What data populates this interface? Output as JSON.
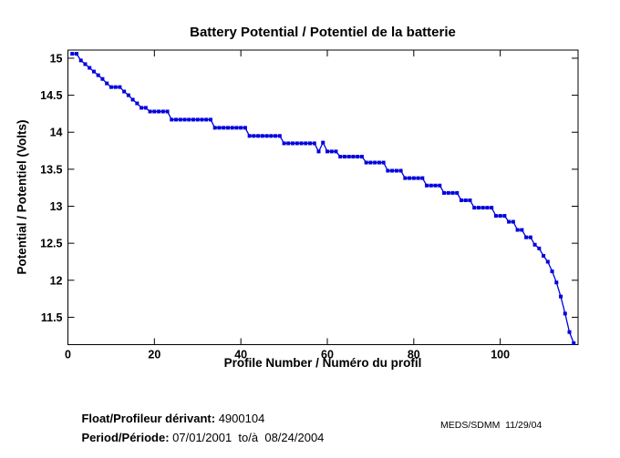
{
  "footer": {
    "float_label": "Float/Profileur dérivant:",
    "float_value": " 4900104",
    "period_label": "Period/Période:",
    "period_value": " 07/01/2001  to/à  08/24/2004",
    "credit": "MEDS/SDMM  11/29/04"
  },
  "chart_data": {
    "type": "line",
    "title": "Battery Potential / Potentiel de la batterie",
    "xlabel": "Profile Number / Numéro du profil",
    "ylabel": "Potential / Potentiel (Volts)",
    "xlim": [
      0,
      118
    ],
    "ylim": [
      11.13,
      15.11
    ],
    "xticks": [
      0,
      20,
      40,
      60,
      80,
      100
    ],
    "yticks": [
      11.5,
      12,
      12.5,
      13,
      13.5,
      14,
      14.5,
      15
    ],
    "grid": false,
    "legend": "none",
    "line_color": "#0000dd",
    "marker": "filled-square",
    "axis_color": "#000000",
    "x": [
      1,
      2,
      3,
      4,
      5,
      6,
      7,
      8,
      9,
      10,
      11,
      12,
      13,
      14,
      15,
      16,
      17,
      18,
      19,
      20,
      21,
      22,
      23,
      24,
      25,
      26,
      27,
      28,
      29,
      30,
      31,
      32,
      33,
      34,
      35,
      36,
      37,
      38,
      39,
      40,
      41,
      42,
      43,
      44,
      45,
      46,
      47,
      48,
      49,
      50,
      51,
      52,
      53,
      54,
      55,
      56,
      57,
      58,
      59,
      60,
      61,
      62,
      63,
      64,
      65,
      66,
      67,
      68,
      69,
      70,
      71,
      72,
      73,
      74,
      75,
      76,
      77,
      78,
      79,
      80,
      81,
      82,
      83,
      84,
      85,
      86,
      87,
      88,
      89,
      90,
      91,
      92,
      93,
      94,
      95,
      96,
      97,
      98,
      99,
      100,
      101,
      102,
      103,
      104,
      105,
      106,
      107,
      108,
      109,
      110,
      111,
      112,
      113,
      114,
      115,
      116,
      117
    ],
    "y": [
      15.06,
      15.06,
      14.97,
      14.92,
      14.87,
      14.82,
      14.77,
      14.72,
      14.66,
      14.61,
      14.61,
      14.61,
      14.55,
      14.5,
      14.44,
      14.39,
      14.33,
      14.33,
      14.28,
      14.28,
      14.28,
      14.28,
      14.28,
      14.17,
      14.17,
      14.17,
      14.17,
      14.17,
      14.17,
      14.17,
      14.17,
      14.17,
      14.17,
      14.06,
      14.06,
      14.06,
      14.06,
      14.06,
      14.06,
      14.06,
      14.06,
      13.95,
      13.95,
      13.95,
      13.95,
      13.95,
      13.95,
      13.95,
      13.95,
      13.85,
      13.85,
      13.85,
      13.85,
      13.85,
      13.85,
      13.85,
      13.85,
      13.74,
      13.86,
      13.74,
      13.74,
      13.74,
      13.67,
      13.67,
      13.67,
      13.67,
      13.67,
      13.67,
      13.59,
      13.59,
      13.59,
      13.59,
      13.59,
      13.48,
      13.48,
      13.48,
      13.48,
      13.38,
      13.38,
      13.38,
      13.38,
      13.38,
      13.28,
      13.28,
      13.28,
      13.28,
      13.18,
      13.18,
      13.18,
      13.18,
      13.08,
      13.08,
      13.08,
      12.98,
      12.98,
      12.98,
      12.98,
      12.98,
      12.87,
      12.87,
      12.87,
      12.79,
      12.79,
      12.68,
      12.68,
      12.58,
      12.58,
      12.48,
      12.43,
      12.33,
      12.25,
      12.12,
      11.97,
      11.78,
      11.55,
      11.3,
      11.15
    ]
  }
}
